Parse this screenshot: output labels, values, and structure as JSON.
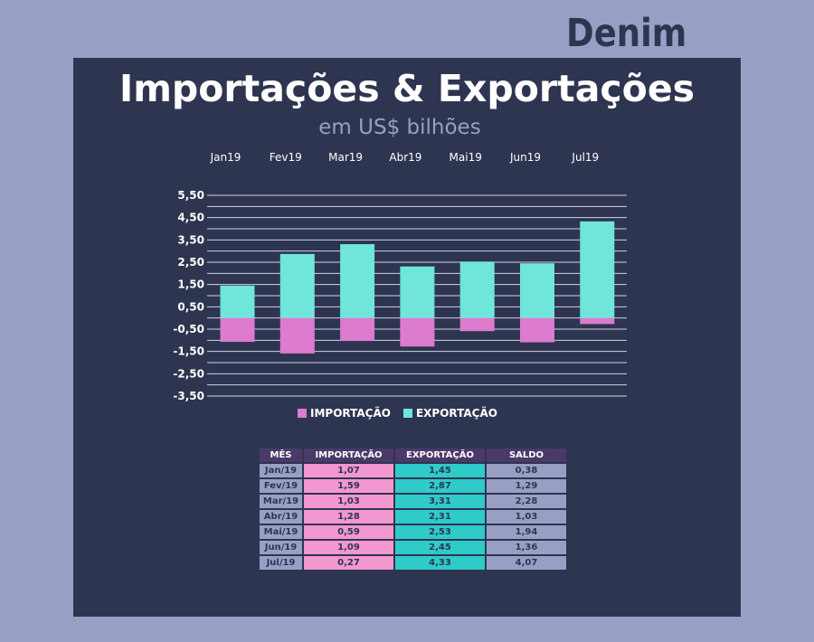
{
  "brand": "Denim",
  "colors": {
    "background": "#97a0c4",
    "panel": "#2e3550",
    "importacao": "#dd7bcf",
    "exportacao": "#6fe6d9",
    "table_header": "#4a3a6a",
    "table_imp": "#f397cf",
    "table_exp": "#2fcbc9",
    "table_other": "#97a0c4"
  },
  "chart_data": {
    "type": "bar",
    "stacked": true,
    "title": "Importações & Exportações",
    "subtitle": "em US$ bilhões",
    "categories": [
      "Jan19",
      "Fev19",
      "Mar19",
      "Abr19",
      "Mai19",
      "Jun19",
      "Jul19"
    ],
    "series": [
      {
        "name": "IMPORTAÇÃO",
        "values": [
          -1.07,
          -1.59,
          -1.03,
          -1.28,
          -0.59,
          -1.09,
          -0.27
        ]
      },
      {
        "name": "EXPORTAÇÃO",
        "values": [
          1.45,
          2.87,
          3.31,
          2.31,
          2.53,
          2.45,
          4.33
        ]
      }
    ],
    "yticks": [
      "5,50",
      "4,50",
      "3,50",
      "2,50",
      "1,50",
      "0,50",
      "-0,50",
      "-1,50",
      "-2,50",
      "-3,50"
    ],
    "ylim": [
      -3.5,
      5.5
    ],
    "legend_position": "bottom",
    "category_labels_position": "top",
    "grid": true
  },
  "table": {
    "headers": [
      "MÊS",
      "IMPORTAÇÃO",
      "EXPORTAÇÃO",
      "SALDO"
    ],
    "rows": [
      [
        "Jan/19",
        "1,07",
        "1,45",
        "0,38"
      ],
      [
        "Fev/19",
        "1,59",
        "2,87",
        "1,29"
      ],
      [
        "Mar/19",
        "1,03",
        "3,31",
        "2,28"
      ],
      [
        "Abr/19",
        "1,28",
        "2,31",
        "1,03"
      ],
      [
        "Mai/19",
        "0,59",
        "2,53",
        "1,94"
      ],
      [
        "Jun/19",
        "1,09",
        "2,45",
        "1,36"
      ],
      [
        "Jul/19",
        "0,27",
        "4,33",
        "4,07"
      ]
    ]
  }
}
